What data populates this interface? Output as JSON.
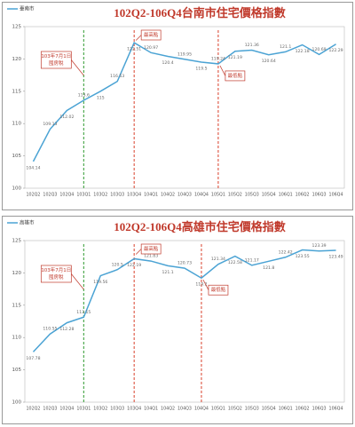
{
  "chart_data": [
    {
      "type": "line",
      "title": "102Q2-106Q4台南市住宅價格指數",
      "categories": [
        "102Q2",
        "102Q3",
        "102Q4",
        "103Q1",
        "103Q2",
        "103Q3",
        "103Q4",
        "104Q1",
        "104Q2",
        "104Q3",
        "104Q4",
        "105Q1",
        "105Q2",
        "105Q3",
        "105Q4",
        "106Q1",
        "106Q2",
        "106Q3",
        "106Q4"
      ],
      "series": [
        {
          "name": "臺南市",
          "color": "#4ba3d4",
          "values": [
            104.14,
            109.13,
            112.02,
            113.6,
            115,
            116.53,
            122.51,
            120.97,
            120.4,
            119.95,
            119.5,
            119.24,
            121.19,
            121.36,
            120.64,
            121.1,
            122.18,
            120.69,
            122.29
          ]
        }
      ],
      "ylim": [
        100,
        125
      ],
      "yticks": [
        100,
        105,
        110,
        115,
        120,
        125
      ],
      "grid": false,
      "vlines": [
        {
          "category": "103Q1",
          "color": "#2e9a2e"
        },
        {
          "category": "103Q4",
          "color": "#d9402b"
        },
        {
          "category": "105Q1",
          "color": "#d9402b"
        }
      ],
      "annotations": [
        {
          "category": "103Q1",
          "lines": [
            "103年7月1日",
            "囤房稅"
          ],
          "placement": "left"
        },
        {
          "category": "103Q4",
          "lines": [
            "最高點"
          ],
          "placement": "top-right"
        },
        {
          "category": "105Q1",
          "lines": [
            "最低點"
          ],
          "placement": "bottom-right"
        }
      ]
    },
    {
      "type": "line",
      "title": "102Q2-106Q4高雄市住宅價格指數",
      "categories": [
        "102Q2",
        "102Q3",
        "102Q4",
        "103Q1",
        "103Q2",
        "103Q3",
        "103Q4",
        "104Q1",
        "104Q2",
        "104Q3",
        "104Q4",
        "105Q1",
        "105Q2",
        "105Q3",
        "105Q4",
        "106Q1",
        "106Q2",
        "106Q3",
        "106Q4"
      ],
      "series": [
        {
          "name": "高雄市",
          "color": "#4ba3d4",
          "values": [
            107.78,
            110.55,
            112.28,
            113.15,
            119.56,
            120.5,
            122.19,
            121.83,
            121.1,
            120.73,
            119.2,
            121.34,
            122.58,
            121.17,
            121.8,
            122.42,
            123.55,
            123.39,
            123.49
          ]
        }
      ],
      "ylim": [
        100,
        125
      ],
      "yticks": [
        100,
        105,
        110,
        115,
        120,
        125
      ],
      "grid": false,
      "vlines": [
        {
          "category": "103Q1",
          "color": "#2e9a2e"
        },
        {
          "category": "103Q4",
          "color": "#d9402b"
        },
        {
          "category": "104Q4",
          "color": "#d9402b"
        }
      ],
      "annotations": [
        {
          "category": "103Q1",
          "lines": [
            "103年7月1日",
            "囤房稅"
          ],
          "placement": "left"
        },
        {
          "category": "103Q4",
          "lines": [
            "最高點"
          ],
          "placement": "top-right"
        },
        {
          "category": "104Q4",
          "lines": [
            "最低點"
          ],
          "placement": "bottom-right"
        }
      ]
    }
  ]
}
